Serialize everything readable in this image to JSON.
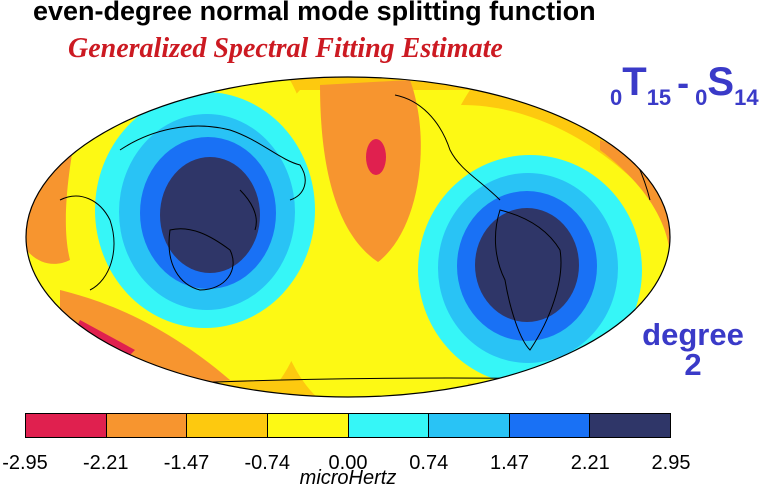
{
  "header": {
    "title": "even-degree normal mode splitting function",
    "subtitle": "Generalized Spectral Fitting Estimate"
  },
  "mode": {
    "left_prefix": "0",
    "left_letter": "T",
    "left_sub": "15",
    "separator": "-",
    "right_prefix": "0",
    "right_letter": "S",
    "right_sub": "14"
  },
  "degree": {
    "line1": "degree",
    "line2": "2"
  },
  "colorbar": {
    "ticks": [
      "-2.95",
      "-2.21",
      "-1.47",
      "-0.74",
      "0.00",
      "0.74",
      "1.47",
      "2.21",
      "2.95"
    ],
    "colors": [
      "#e0204f",
      "#f7952f",
      "#fdc90f",
      "#fdf914",
      "#36f6f7",
      "#29c3f5",
      "#1971f5",
      "#2f3668"
    ],
    "unit": "microHertz"
  },
  "map": {
    "projection": "Hammer/Mollweide global, Pacific-centered",
    "features": [
      {
        "label": "negative anomaly (North Pacific)",
        "level": "-2.95 to -2.21"
      },
      {
        "label": "negative anomaly (South Atlantic/Southern Ocean)",
        "level": "-2.95 to -2.21"
      },
      {
        "label": "positive anomaly (Australasia / West Pacific)",
        "level": "2.21 to 2.95"
      },
      {
        "label": "positive anomaly (South America)",
        "level": "2.21 to 2.95"
      }
    ]
  }
}
